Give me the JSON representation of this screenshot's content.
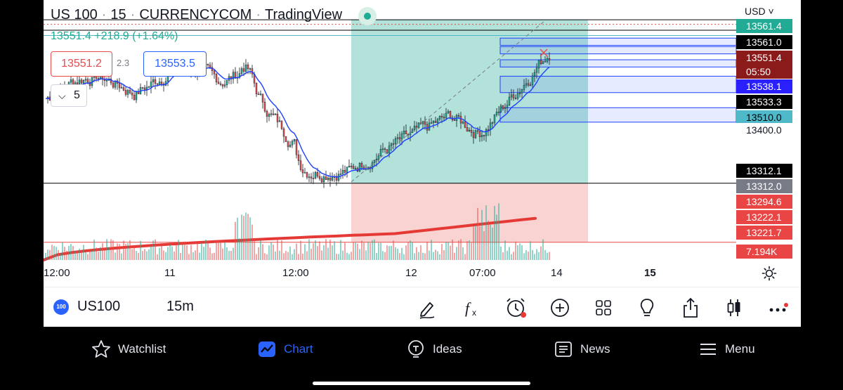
{
  "header": {
    "symbol": "US 100",
    "interval": "15",
    "exchange": "CURRENCYCOM",
    "provider": "TradingView",
    "price": "13551.4",
    "change": "+218.9 (+1.64%)"
  },
  "quote": {
    "bid": "13551.2",
    "spread": "2.3",
    "ask": "13553.5"
  },
  "indicators_count": "5",
  "currency": "USD",
  "price_labels": [
    {
      "text": "13561.4",
      "bg": "#22ab94",
      "fg": "#ffffff"
    },
    {
      "text": "13561.0",
      "bg": "#000000",
      "fg": "#ffffff"
    },
    {
      "text": "13551.4",
      "bg": "#8b1a1a",
      "fg": "#ffffff"
    },
    {
      "text": "05:50",
      "bg": "#8b1a1a",
      "fg": "#ffffff"
    },
    {
      "text": "13538.1",
      "bg": "#2a1fff",
      "fg": "#ffffff"
    },
    {
      "text": "13533.3",
      "bg": "#000000",
      "fg": "#ffffff"
    },
    {
      "text": "13510.0",
      "bg": "#4fb8c9",
      "fg": "#000000"
    },
    {
      "text": "13400.0",
      "bg": "#ffffff",
      "fg": "#131722"
    },
    {
      "text": "13312.1",
      "bg": "#000000",
      "fg": "#ffffff"
    },
    {
      "text": "13312.0",
      "bg": "#787b86",
      "fg": "#ffffff"
    },
    {
      "text": "13294.6",
      "bg": "#e94545",
      "fg": "#ffffff"
    },
    {
      "text": "13222.1",
      "bg": "#e94545",
      "fg": "#ffffff"
    },
    {
      "text": "13221.7",
      "bg": "#e94545",
      "fg": "#ffffff"
    },
    {
      "text": "7.194K",
      "bg": "#e94545",
      "fg": "#ffffff"
    }
  ],
  "time_labels": [
    "12:00",
    "11",
    "12:00",
    "12",
    "07:00",
    "14",
    "15"
  ],
  "toolbar": {
    "symbol": "US100",
    "interval": "15m",
    "badge": "100"
  },
  "nav": {
    "watchlist": "Watchlist",
    "chart": "Chart",
    "ideas": "Ideas",
    "news": "News",
    "menu": "Menu"
  },
  "colors": {
    "up": "#22ab94",
    "down": "#e74c4c",
    "accent": "#2962ff",
    "ma": "#e53935",
    "fast_ma": "#1e40ff"
  },
  "icons": [
    "draw-icon",
    "fx-icon",
    "alert-icon",
    "plus-icon",
    "grid-icon",
    "idea-bulb-icon",
    "share-icon",
    "candle-type-icon",
    "more-icon"
  ]
}
